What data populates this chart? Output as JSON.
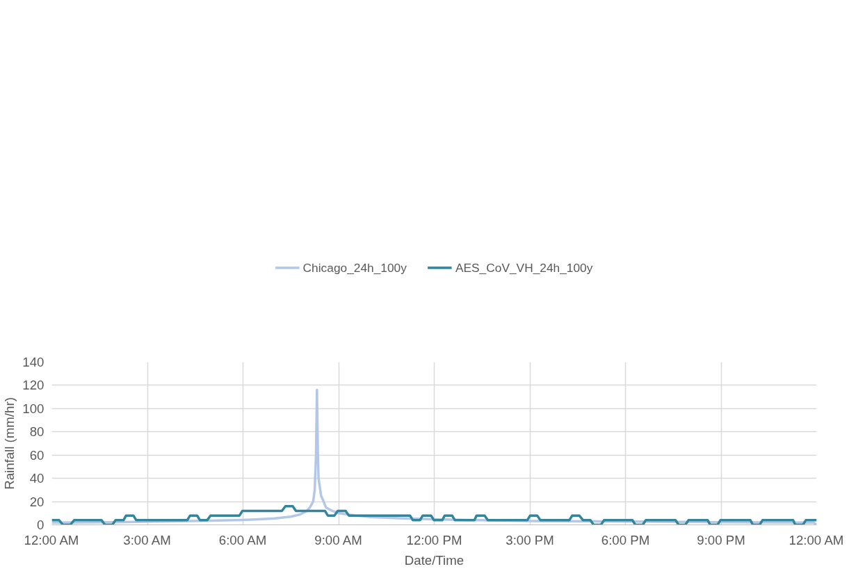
{
  "chart_data": {
    "type": "line",
    "xlabel": "Date/Time",
    "ylabel": "Rainfall (mm/hr)",
    "xlim": [
      0,
      24
    ],
    "ylim": [
      0,
      140
    ],
    "xticks": [
      {
        "value": 0,
        "label": "12:00 AM"
      },
      {
        "value": 3,
        "label": "3:00 AM"
      },
      {
        "value": 6,
        "label": "6:00 AM"
      },
      {
        "value": 9,
        "label": "9:00 AM"
      },
      {
        "value": 12,
        "label": "12:00 PM"
      },
      {
        "value": 15,
        "label": "3:00 PM"
      },
      {
        "value": 18,
        "label": "6:00 PM"
      },
      {
        "value": 21,
        "label": "9:00 PM"
      },
      {
        "value": 24,
        "label": "12:00 AM"
      }
    ],
    "yticks": [
      0,
      20,
      40,
      60,
      80,
      100,
      120,
      140
    ],
    "grid": true,
    "legend": "top",
    "marker": "none",
    "line_style": "solid",
    "series": [
      {
        "name": "Chicago_24h_100y",
        "color": "#b4c7e7",
        "x": [
          0,
          1,
          2,
          3,
          4,
          5,
          6,
          6.5,
          7,
          7.5,
          7.8,
          8,
          8.1,
          8.2,
          8.25,
          8.29,
          8.32,
          8.35,
          8.37,
          8.45,
          8.5,
          8.6,
          8.8,
          9,
          9.5,
          10,
          11,
          12,
          13,
          15,
          18,
          21,
          23.9,
          24
        ],
        "values": [
          2,
          2.1,
          2.3,
          2.7,
          3.1,
          3.6,
          4.2,
          4.8,
          5.5,
          7,
          9,
          12,
          15,
          20,
          30,
          60,
          116,
          60,
          40,
          25,
          22,
          15,
          12,
          10,
          8,
          6.8,
          5.5,
          4.8,
          4.2,
          3.3,
          2.8,
          2.3,
          2,
          0
        ]
      },
      {
        "name": "AES_CoV_VH_24h_100y",
        "color": "#31859c",
        "x": [
          0,
          0.23,
          0.35,
          0.58,
          0.7,
          1.56,
          1.67,
          1.9,
          2.0,
          2.25,
          2.33,
          2.56,
          2.65,
          4.25,
          4.34,
          4.56,
          4.65,
          4.88,
          4.98,
          5.89,
          5.98,
          7.22,
          7.33,
          7.56,
          7.66,
          8.57,
          8.66,
          8.87,
          8.97,
          9.22,
          9.32,
          11.24,
          11.33,
          11.55,
          11.64,
          11.9,
          11.99,
          12.25,
          12.33,
          12.56,
          12.65,
          13.26,
          13.33,
          13.58,
          13.68,
          14.92,
          15.01,
          15.23,
          15.33,
          16.24,
          16.33,
          16.55,
          16.67,
          16.9,
          17.0,
          17.23,
          17.33,
          18.22,
          18.31,
          18.54,
          18.64,
          19.57,
          19.67,
          19.88,
          19.98,
          20.58,
          20.66,
          20.89,
          20.98,
          21.92,
          22.0,
          22.21,
          22.3,
          23.26,
          23.33,
          23.57,
          23.66,
          24
        ],
        "values": [
          4,
          4,
          0,
          0,
          4,
          4,
          0,
          0,
          4,
          4,
          8,
          8,
          4,
          4,
          8,
          8,
          4,
          4,
          8,
          8,
          12,
          12,
          16,
          16,
          12,
          12,
          8,
          8,
          12,
          12,
          8,
          8,
          4,
          4,
          8,
          8,
          4,
          4,
          8,
          8,
          4,
          4,
          8,
          8,
          4,
          4,
          8,
          8,
          4,
          4,
          8,
          8,
          4,
          4,
          0,
          0,
          4,
          4,
          0,
          0,
          4,
          4,
          0,
          0,
          4,
          4,
          0,
          0,
          4,
          4,
          0,
          0,
          4,
          4,
          0,
          0,
          4,
          4
        ]
      }
    ]
  }
}
